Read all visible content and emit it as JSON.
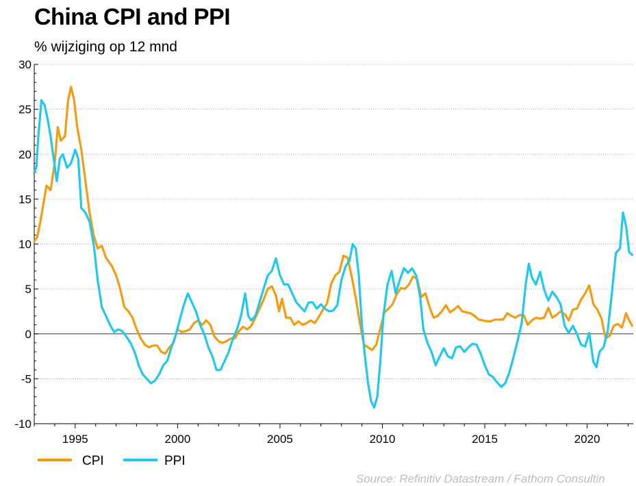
{
  "title": "China CPI and PPI",
  "subtitle": "% wijziging op 12 mnd",
  "source": "Source: Refinitiv Datastream / Fathom Consultin",
  "colors": {
    "CPI": "#f39c12",
    "PPI": "#1ec8f0"
  },
  "chart_data": {
    "type": "line",
    "title": "China CPI and PPI",
    "subtitle": "% wijziging op 12 mnd",
    "xlabel": "",
    "ylabel": "",
    "xlim": [
      1993.0,
      2022.25
    ],
    "ylim": [
      -10,
      30
    ],
    "yticks": [
      30,
      25,
      20,
      15,
      10,
      5,
      0,
      -5,
      -10
    ],
    "xticks": [
      1995,
      2000,
      2005,
      2010,
      2015,
      2020
    ],
    "grid": "horizontal dotted",
    "legend": "bottom-left",
    "series": [
      {
        "name": "CPI",
        "points": [
          [
            1993.0,
            10.3
          ],
          [
            1993.15,
            10.8
          ],
          [
            1993.3,
            12.5
          ],
          [
            1993.45,
            14.5
          ],
          [
            1993.6,
            16.5
          ],
          [
            1993.8,
            16.0
          ],
          [
            1994.0,
            19.0
          ],
          [
            1994.15,
            23.0
          ],
          [
            1994.3,
            21.5
          ],
          [
            1994.5,
            22.0
          ],
          [
            1994.65,
            26.0
          ],
          [
            1994.8,
            27.5
          ],
          [
            1994.95,
            26.0
          ],
          [
            1995.1,
            23.0
          ],
          [
            1995.3,
            20.5
          ],
          [
            1995.5,
            17.0
          ],
          [
            1995.7,
            13.5
          ],
          [
            1995.9,
            11.0
          ],
          [
            1996.1,
            9.5
          ],
          [
            1996.3,
            9.8
          ],
          [
            1996.5,
            8.5
          ],
          [
            1996.8,
            7.5
          ],
          [
            1997.0,
            6.5
          ],
          [
            1997.2,
            5.0
          ],
          [
            1997.4,
            3.0
          ],
          [
            1997.6,
            2.5
          ],
          [
            1997.8,
            1.8
          ],
          [
            1998.0,
            0.5
          ],
          [
            1998.2,
            -0.5
          ],
          [
            1998.4,
            -1.2
          ],
          [
            1998.6,
            -1.5
          ],
          [
            1998.8,
            -1.3
          ],
          [
            1999.0,
            -1.3
          ],
          [
            1999.2,
            -2.0
          ],
          [
            1999.4,
            -2.2
          ],
          [
            1999.6,
            -1.5
          ],
          [
            1999.8,
            -1.0
          ],
          [
            2000.0,
            0.5
          ],
          [
            2000.2,
            0.2
          ],
          [
            2000.4,
            0.3
          ],
          [
            2000.6,
            0.5
          ],
          [
            2000.8,
            1.2
          ],
          [
            2001.0,
            1.5
          ],
          [
            2001.2,
            1.0
          ],
          [
            2001.4,
            1.5
          ],
          [
            2001.6,
            1.0
          ],
          [
            2001.8,
            -0.3
          ],
          [
            2002.0,
            -0.8
          ],
          [
            2002.2,
            -1.0
          ],
          [
            2002.4,
            -0.8
          ],
          [
            2002.6,
            -0.5
          ],
          [
            2002.8,
            -0.5
          ],
          [
            2003.0,
            0.3
          ],
          [
            2003.2,
            0.8
          ],
          [
            2003.4,
            0.5
          ],
          [
            2003.6,
            0.9
          ],
          [
            2003.8,
            1.8
          ],
          [
            2004.0,
            2.8
          ],
          [
            2004.2,
            3.8
          ],
          [
            2004.4,
            5.0
          ],
          [
            2004.6,
            5.3
          ],
          [
            2004.8,
            4.3
          ],
          [
            2004.95,
            2.5
          ],
          [
            2005.1,
            3.9
          ],
          [
            2005.3,
            1.8
          ],
          [
            2005.5,
            1.8
          ],
          [
            2005.7,
            1.0
          ],
          [
            2005.9,
            1.4
          ],
          [
            2006.1,
            1.0
          ],
          [
            2006.3,
            1.2
          ],
          [
            2006.5,
            1.5
          ],
          [
            2006.7,
            1.2
          ],
          [
            2006.9,
            1.9
          ],
          [
            2007.1,
            2.7
          ],
          [
            2007.3,
            3.4
          ],
          [
            2007.5,
            5.6
          ],
          [
            2007.7,
            6.5
          ],
          [
            2007.9,
            6.9
          ],
          [
            2008.1,
            8.7
          ],
          [
            2008.3,
            8.5
          ],
          [
            2008.5,
            6.4
          ],
          [
            2008.7,
            4.0
          ],
          [
            2008.9,
            1.2
          ],
          [
            2009.1,
            -1.2
          ],
          [
            2009.3,
            -1.5
          ],
          [
            2009.5,
            -1.8
          ],
          [
            2009.7,
            -1.2
          ],
          [
            2009.9,
            0.6
          ],
          [
            2010.1,
            2.4
          ],
          [
            2010.3,
            2.8
          ],
          [
            2010.5,
            3.3
          ],
          [
            2010.7,
            4.4
          ],
          [
            2010.9,
            5.1
          ],
          [
            2011.1,
            5.0
          ],
          [
            2011.3,
            5.5
          ],
          [
            2011.5,
            6.4
          ],
          [
            2011.7,
            6.1
          ],
          [
            2011.9,
            4.1
          ],
          [
            2012.1,
            4.5
          ],
          [
            2012.3,
            3.0
          ],
          [
            2012.5,
            1.8
          ],
          [
            2012.7,
            2.0
          ],
          [
            2012.9,
            2.5
          ],
          [
            2013.1,
            3.2
          ],
          [
            2013.3,
            2.4
          ],
          [
            2013.5,
            2.7
          ],
          [
            2013.7,
            3.1
          ],
          [
            2013.9,
            2.5
          ],
          [
            2014.1,
            2.4
          ],
          [
            2014.3,
            2.3
          ],
          [
            2014.5,
            2.0
          ],
          [
            2014.7,
            1.6
          ],
          [
            2014.9,
            1.5
          ],
          [
            2015.1,
            1.4
          ],
          [
            2015.3,
            1.4
          ],
          [
            2015.5,
            1.6
          ],
          [
            2015.7,
            1.6
          ],
          [
            2015.9,
            1.6
          ],
          [
            2016.1,
            2.3
          ],
          [
            2016.3,
            2.0
          ],
          [
            2016.5,
            1.8
          ],
          [
            2016.7,
            2.1
          ],
          [
            2016.9,
            2.1
          ],
          [
            2017.1,
            1.0
          ],
          [
            2017.3,
            1.5
          ],
          [
            2017.5,
            1.8
          ],
          [
            2017.7,
            1.7
          ],
          [
            2017.9,
            1.8
          ],
          [
            2018.1,
            2.9
          ],
          [
            2018.3,
            1.8
          ],
          [
            2018.5,
            2.1
          ],
          [
            2018.7,
            2.5
          ],
          [
            2018.9,
            2.2
          ],
          [
            2019.1,
            1.5
          ],
          [
            2019.3,
            2.7
          ],
          [
            2019.5,
            2.8
          ],
          [
            2019.7,
            3.8
          ],
          [
            2019.9,
            4.5
          ],
          [
            2020.1,
            5.4
          ],
          [
            2020.3,
            3.3
          ],
          [
            2020.5,
            2.7
          ],
          [
            2020.7,
            1.7
          ],
          [
            2020.9,
            -0.5
          ],
          [
            2021.1,
            -0.2
          ],
          [
            2021.3,
            0.9
          ],
          [
            2021.5,
            1.1
          ],
          [
            2021.7,
            0.7
          ],
          [
            2021.9,
            2.3
          ],
          [
            2022.05,
            1.5
          ],
          [
            2022.2,
            0.9
          ]
        ]
      },
      {
        "name": "PPI",
        "points": [
          [
            1993.0,
            18.0
          ],
          [
            1993.1,
            18.5
          ],
          [
            1993.2,
            22.0
          ],
          [
            1993.35,
            26.0
          ],
          [
            1993.5,
            25.5
          ],
          [
            1993.65,
            24.0
          ],
          [
            1993.8,
            22.0
          ],
          [
            1993.95,
            19.5
          ],
          [
            1994.1,
            17.0
          ],
          [
            1994.25,
            19.5
          ],
          [
            1994.4,
            20.0
          ],
          [
            1994.6,
            18.5
          ],
          [
            1994.8,
            19.0
          ],
          [
            1995.0,
            20.5
          ],
          [
            1995.15,
            19.5
          ],
          [
            1995.3,
            14.0
          ],
          [
            1995.5,
            13.5
          ],
          [
            1995.7,
            12.5
          ],
          [
            1995.9,
            10.0
          ],
          [
            1996.1,
            6.0
          ],
          [
            1996.3,
            3.0
          ],
          [
            1996.5,
            2.0
          ],
          [
            1996.7,
            1.0
          ],
          [
            1996.9,
            0.2
          ],
          [
            1997.1,
            0.5
          ],
          [
            1997.3,
            0.3
          ],
          [
            1997.5,
            -0.3
          ],
          [
            1997.7,
            -1.0
          ],
          [
            1997.9,
            -2.0
          ],
          [
            1998.1,
            -3.5
          ],
          [
            1998.3,
            -4.5
          ],
          [
            1998.5,
            -5.0
          ],
          [
            1998.7,
            -5.5
          ],
          [
            1998.9,
            -5.2
          ],
          [
            1999.1,
            -4.5
          ],
          [
            1999.3,
            -3.5
          ],
          [
            1999.5,
            -3.0
          ],
          [
            1999.7,
            -1.5
          ],
          [
            1999.9,
            -0.2
          ],
          [
            2000.1,
            1.5
          ],
          [
            2000.3,
            3.2
          ],
          [
            2000.5,
            4.5
          ],
          [
            2000.7,
            3.5
          ],
          [
            2000.9,
            2.5
          ],
          [
            2001.1,
            1.0
          ],
          [
            2001.3,
            0.0
          ],
          [
            2001.5,
            -1.5
          ],
          [
            2001.7,
            -2.5
          ],
          [
            2001.9,
            -4.0
          ],
          [
            2002.1,
            -4.0
          ],
          [
            2002.3,
            -3.0
          ],
          [
            2002.5,
            -2.0
          ],
          [
            2002.7,
            -0.5
          ],
          [
            2002.9,
            0.5
          ],
          [
            2003.1,
            2.0
          ],
          [
            2003.3,
            4.5
          ],
          [
            2003.45,
            2.0
          ],
          [
            2003.6,
            1.5
          ],
          [
            2003.8,
            2.0
          ],
          [
            2004.0,
            3.5
          ],
          [
            2004.2,
            5.0
          ],
          [
            2004.4,
            6.5
          ],
          [
            2004.6,
            7.0
          ],
          [
            2004.8,
            8.4
          ],
          [
            2005.0,
            6.5
          ],
          [
            2005.2,
            5.5
          ],
          [
            2005.4,
            5.5
          ],
          [
            2005.6,
            4.5
          ],
          [
            2005.8,
            3.5
          ],
          [
            2006.0,
            3.0
          ],
          [
            2006.2,
            2.5
          ],
          [
            2006.4,
            3.5
          ],
          [
            2006.6,
            3.5
          ],
          [
            2006.8,
            2.8
          ],
          [
            2007.0,
            3.3
          ],
          [
            2007.2,
            2.8
          ],
          [
            2007.4,
            2.5
          ],
          [
            2007.6,
            2.6
          ],
          [
            2007.8,
            3.2
          ],
          [
            2008.0,
            6.0
          ],
          [
            2008.2,
            7.5
          ],
          [
            2008.4,
            8.2
          ],
          [
            2008.55,
            10.0
          ],
          [
            2008.7,
            9.5
          ],
          [
            2008.85,
            6.5
          ],
          [
            2009.0,
            1.0
          ],
          [
            2009.15,
            -2.5
          ],
          [
            2009.3,
            -5.5
          ],
          [
            2009.45,
            -7.5
          ],
          [
            2009.6,
            -8.2
          ],
          [
            2009.75,
            -7.0
          ],
          [
            2009.9,
            -3.0
          ],
          [
            2010.05,
            2.0
          ],
          [
            2010.25,
            5.5
          ],
          [
            2010.45,
            7.0
          ],
          [
            2010.65,
            4.5
          ],
          [
            2010.85,
            6.0
          ],
          [
            2011.05,
            7.3
          ],
          [
            2011.25,
            6.8
          ],
          [
            2011.45,
            7.3
          ],
          [
            2011.65,
            6.5
          ],
          [
            2011.85,
            4.0
          ],
          [
            2012.0,
            0.5
          ],
          [
            2012.2,
            -1.0
          ],
          [
            2012.4,
            -2.0
          ],
          [
            2012.6,
            -3.5
          ],
          [
            2012.8,
            -2.5
          ],
          [
            2013.0,
            -1.6
          ],
          [
            2013.2,
            -2.5
          ],
          [
            2013.4,
            -2.7
          ],
          [
            2013.6,
            -1.5
          ],
          [
            2013.8,
            -1.4
          ],
          [
            2014.0,
            -2.0
          ],
          [
            2014.2,
            -1.5
          ],
          [
            2014.4,
            -1.1
          ],
          [
            2014.6,
            -1.2
          ],
          [
            2014.8,
            -2.2
          ],
          [
            2015.0,
            -3.5
          ],
          [
            2015.2,
            -4.5
          ],
          [
            2015.4,
            -4.8
          ],
          [
            2015.6,
            -5.4
          ],
          [
            2015.8,
            -5.9
          ],
          [
            2016.0,
            -5.5
          ],
          [
            2016.2,
            -4.3
          ],
          [
            2016.4,
            -2.6
          ],
          [
            2016.6,
            -0.8
          ],
          [
            2016.8,
            1.2
          ],
          [
            2017.0,
            5.5
          ],
          [
            2017.15,
            7.8
          ],
          [
            2017.3,
            6.3
          ],
          [
            2017.5,
            5.5
          ],
          [
            2017.7,
            6.9
          ],
          [
            2017.9,
            4.9
          ],
          [
            2018.1,
            3.7
          ],
          [
            2018.3,
            4.7
          ],
          [
            2018.5,
            4.1
          ],
          [
            2018.7,
            3.3
          ],
          [
            2018.9,
            0.9
          ],
          [
            2019.1,
            0.1
          ],
          [
            2019.3,
            0.9
          ],
          [
            2019.5,
            0.0
          ],
          [
            2019.7,
            -1.2
          ],
          [
            2019.9,
            -1.4
          ],
          [
            2020.1,
            0.1
          ],
          [
            2020.3,
            -3.1
          ],
          [
            2020.45,
            -3.7
          ],
          [
            2020.6,
            -2.0
          ],
          [
            2020.8,
            -1.5
          ],
          [
            2021.0,
            0.3
          ],
          [
            2021.2,
            4.4
          ],
          [
            2021.4,
            9.0
          ],
          [
            2021.6,
            9.5
          ],
          [
            2021.75,
            13.5
          ],
          [
            2021.9,
            12.0
          ],
          [
            2022.05,
            9.1
          ],
          [
            2022.2,
            8.8
          ]
        ]
      }
    ]
  }
}
